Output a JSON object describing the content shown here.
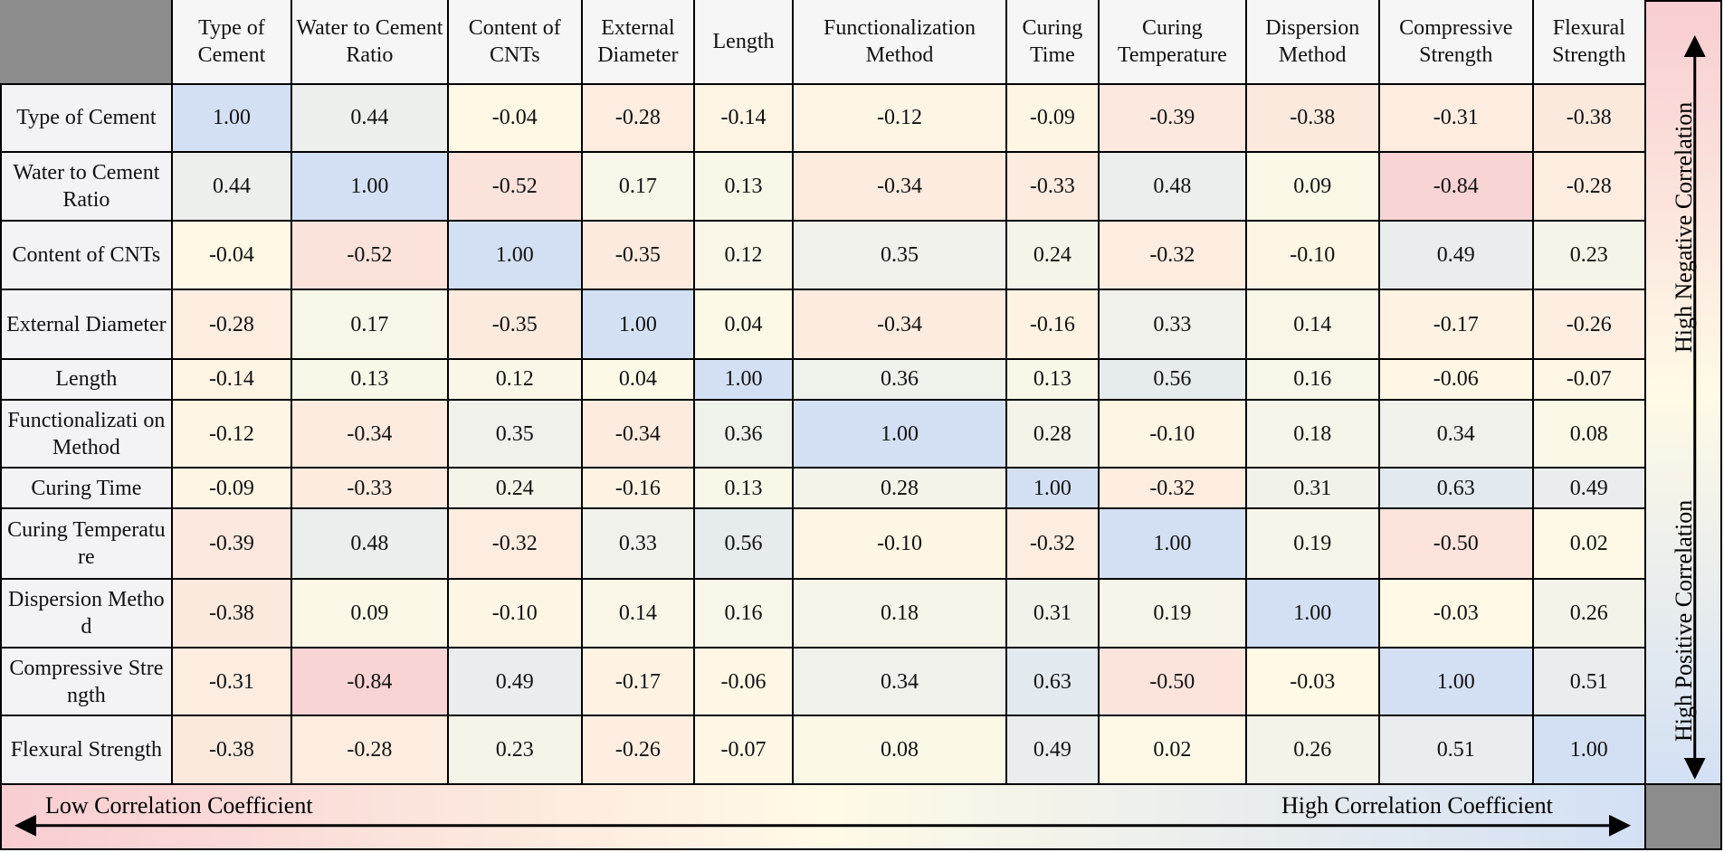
{
  "chart_data": {
    "type": "heatmap",
    "categories": [
      "Type of Cement",
      "Water to Cement Ratio",
      "Content of CNTs",
      "External Diameter",
      "Length",
      "Functionalization Method",
      "Curing Time",
      "Curing Temperature",
      "Dispersion Method",
      "Compressive Strength",
      "Flexural Strength"
    ],
    "rows": [
      "Type of Cement",
      "Water to Cement Ratio",
      "Content of CNTs",
      "External Diameter",
      "Length",
      "Functionalizati on Method",
      "Curing Time",
      "Curing Temperature",
      "Dispersion Method",
      "Compressive Strength",
      "Flexural Strength"
    ],
    "values": [
      [
        1.0,
        0.44,
        -0.04,
        -0.28,
        -0.14,
        -0.12,
        -0.09,
        -0.39,
        -0.38,
        -0.31,
        -0.38
      ],
      [
        0.44,
        1.0,
        -0.52,
        0.17,
        0.13,
        -0.34,
        -0.33,
        0.48,
        0.09,
        -0.84,
        -0.28
      ],
      [
        -0.04,
        -0.52,
        1.0,
        -0.35,
        0.12,
        0.35,
        0.24,
        -0.32,
        -0.1,
        0.49,
        0.23
      ],
      [
        -0.28,
        0.17,
        -0.35,
        1.0,
        0.04,
        -0.34,
        -0.16,
        0.33,
        0.14,
        -0.17,
        -0.26
      ],
      [
        -0.14,
        0.13,
        0.12,
        0.04,
        1.0,
        0.36,
        0.13,
        0.56,
        0.16,
        -0.06,
        -0.07
      ],
      [
        -0.12,
        -0.34,
        0.35,
        -0.34,
        0.36,
        1.0,
        0.28,
        -0.1,
        0.18,
        0.34,
        0.08
      ],
      [
        -0.09,
        -0.33,
        0.24,
        -0.16,
        0.13,
        0.28,
        1.0,
        -0.32,
        0.31,
        0.63,
        0.49
      ],
      [
        -0.39,
        0.48,
        -0.32,
        0.33,
        0.56,
        -0.1,
        -0.32,
        1.0,
        0.19,
        -0.5,
        0.02
      ],
      [
        -0.38,
        0.09,
        -0.1,
        0.14,
        0.16,
        0.18,
        0.31,
        0.19,
        1.0,
        -0.03,
        0.26
      ],
      [
        -0.31,
        -0.84,
        0.49,
        -0.17,
        -0.06,
        0.34,
        0.63,
        -0.5,
        -0.03,
        1.0,
        0.51
      ],
      [
        -0.38,
        -0.28,
        0.23,
        -0.26,
        -0.07,
        0.08,
        0.49,
        0.02,
        0.26,
        0.51,
        1.0
      ]
    ],
    "value_labels": [
      [
        "1.00",
        "0.44",
        "-0.04",
        "-0.28",
        "-0.14",
        "-0.12",
        "-0.09",
        "-0.39",
        "-0.38",
        "-0.31",
        "-0.38"
      ],
      [
        "0.44",
        "1.00",
        "-0.52",
        "0.17",
        "0.13",
        "-0.34",
        "-0.33",
        "0.48",
        "0.09",
        "-0.84",
        "-0.28"
      ],
      [
        "-0.04",
        "-0.52",
        "1.00",
        "-0.35",
        "0.12",
        "0.35",
        "0.24",
        "-0.32",
        "-0.10",
        "0.49",
        "0.23"
      ],
      [
        "-0.28",
        "0.17",
        "-0.35",
        "1.00",
        "0.04",
        "-0.34",
        "-0.16",
        "0.33",
        "0.14",
        "-0.17",
        "-0.26"
      ],
      [
        "-0.14",
        "0.13",
        "0.12",
        "0.04",
        "1.00",
        "0.36",
        "0.13",
        "0.56",
        "0.16",
        "-0.06",
        "-0.07"
      ],
      [
        "-0.12",
        "-0.34",
        "0.35",
        "-0.34",
        "0.36",
        "1.00",
        "0.28",
        "-0.10",
        "0.18",
        "0.34",
        "0.08"
      ],
      [
        "-0.09",
        "-0.33",
        "0.24",
        "-0.16",
        "0.13",
        "0.28",
        "1.00",
        "-0.32",
        "0.31",
        "0.63",
        "0.49"
      ],
      [
        "-0.39",
        "0.48",
        "-0.32",
        "0.33",
        "0.56",
        "-0.10",
        "-0.32",
        "1.00",
        "0.19",
        "-0.50",
        "0.02"
      ],
      [
        "-0.38",
        "0.09",
        "-0.10",
        "0.14",
        "0.16",
        "0.18",
        "0.31",
        "0.19",
        "1.00",
        "-0.03",
        "0.26"
      ],
      [
        "-0.31",
        "-0.84",
        "0.49",
        "-0.17",
        "-0.06",
        "0.34",
        "0.63",
        "-0.50",
        "-0.03",
        "1.00",
        "0.51"
      ],
      [
        "-0.38",
        "-0.28",
        "0.23",
        "-0.26",
        "-0.07",
        "0.08",
        "0.49",
        "0.02",
        "0.26",
        "0.51",
        "1.00"
      ]
    ],
    "colors": {
      "low": "#f8cdd2",
      "mid": "#fffae6",
      "high": "#d3e0f4"
    },
    "annotations": {
      "right_top": "High Negative Correlation",
      "right_bottom": "High Positive Correlation",
      "bottom_left": "Low Correlation Coefficient",
      "bottom_right": "High Correlation Coefficient"
    }
  }
}
